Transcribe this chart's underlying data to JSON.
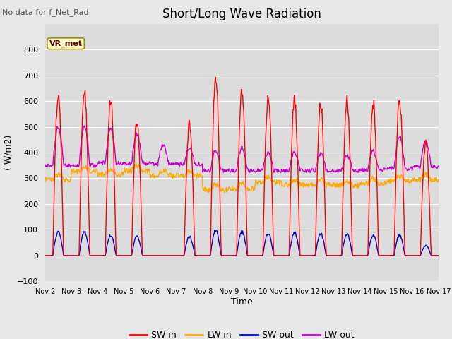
{
  "title": "Short/Long Wave Radiation",
  "no_data_label": "No data for f_Net_Rad",
  "annotation_box": "VR_met",
  "xlabel": "Time",
  "ylabel": "( W/m2)",
  "ylim": [
    -100,
    900
  ],
  "yticks": [
    -100,
    0,
    100,
    200,
    300,
    400,
    500,
    600,
    700,
    800
  ],
  "xlim_days": [
    0,
    15
  ],
  "xtick_labels": [
    "Nov 2",
    "Nov 3",
    "Nov 4",
    "Nov 5",
    "Nov 6",
    "Nov 7",
    "Nov 8",
    "Nov 9",
    "Nov 10",
    "Nov 11",
    "Nov 12",
    "Nov 13",
    "Nov 14",
    "Nov 15",
    "Nov 16",
    "Nov 17"
  ],
  "bg_color": "#e8e8e8",
  "plot_bg_color": "#dcdcdc",
  "grid_color": "#ffffff",
  "colors": {
    "SW_in": "#ff0000",
    "LW_in": "#ffaa00",
    "SW_out": "#0000cc",
    "LW_out": "#cc00cc"
  },
  "legend_entries": [
    "SW in",
    "LW in",
    "SW out",
    "LW out"
  ],
  "n_days": 15,
  "steps_per_day": 48,
  "SW_in_peaks": [
    635,
    640,
    620,
    530,
    0,
    520,
    715,
    650,
    620,
    615,
    600,
    610,
    600,
    620,
    440,
    0
  ],
  "SW_out_peaks": [
    95,
    95,
    80,
    75,
    0,
    75,
    100,
    95,
    90,
    90,
    85,
    85,
    80,
    80,
    40,
    0
  ],
  "LW_in_base": [
    295,
    325,
    315,
    330,
    310,
    310,
    255,
    260,
    285,
    275,
    275,
    272,
    280,
    290,
    295,
    290
  ],
  "LW_out_night": [
    350,
    350,
    360,
    358,
    355,
    355,
    330,
    330,
    330,
    330,
    330,
    330,
    332,
    338,
    345,
    348
  ],
  "LW_out_day_peak": [
    500,
    505,
    495,
    470,
    430,
    415,
    408,
    420,
    400,
    400,
    395,
    390,
    405,
    465,
    445,
    370
  ],
  "sunrise": 0.29,
  "sunset": 0.7,
  "seed": 12
}
